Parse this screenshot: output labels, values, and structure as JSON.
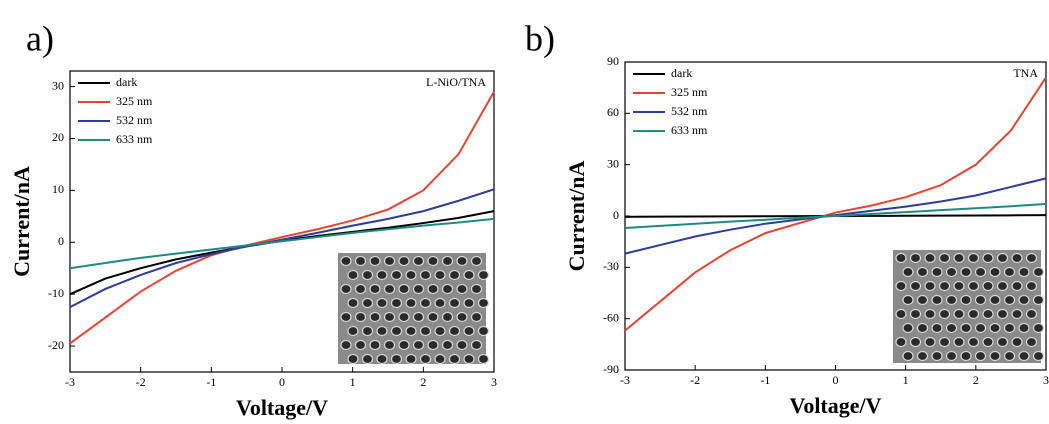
{
  "chart_data": [
    {
      "type": "line",
      "panel_label": "a)",
      "annotation": "L-NiO/TNA",
      "xlabel": "Voltage/V",
      "ylabel": "Current/nA",
      "x": [
        -3,
        -2.5,
        -2,
        -1.5,
        -1,
        -0.5,
        0,
        0.5,
        1,
        1.5,
        2,
        2.5,
        3
      ],
      "series": [
        {
          "name": "dark",
          "color": "#000000",
          "values": [
            -10,
            -7,
            -5,
            -3.3,
            -2,
            -0.8,
            0.3,
            1.2,
            2,
            2.8,
            3.7,
            4.7,
            6
          ]
        },
        {
          "name": "325 nm",
          "color": "#e8432e",
          "values": [
            -19.5,
            -14.5,
            -9.5,
            -5.5,
            -2.5,
            -0.6,
            1,
            2.5,
            4.2,
            6.3,
            10,
            17,
            29
          ]
        },
        {
          "name": "532 nm",
          "color": "#2c3d9c",
          "values": [
            -12.5,
            -9,
            -6.3,
            -4,
            -2.3,
            -0.8,
            0.5,
            1.8,
            3.2,
            4.5,
            6,
            8,
            10.2
          ]
        },
        {
          "name": "633 nm",
          "color": "#1f8a80",
          "values": [
            -5,
            -4,
            -3,
            -2.2,
            -1.4,
            -0.6,
            0.2,
            1,
            1.8,
            2.5,
            3.2,
            3.8,
            4.5
          ]
        }
      ],
      "xlim": [
        -3,
        3
      ],
      "ylim": [
        -25,
        33
      ],
      "xticks": [
        -3,
        -2,
        -1,
        0,
        1,
        2,
        3
      ],
      "yticks": [
        -20,
        -10,
        0,
        10,
        20,
        30
      ],
      "legend": "upper left"
    },
    {
      "type": "line",
      "panel_label": "b)",
      "annotation": "TNA",
      "xlabel": "Voltage/V",
      "ylabel": "Current/nA",
      "x": [
        -3,
        -2.5,
        -2,
        -1.5,
        -1,
        -0.5,
        0,
        0.5,
        1,
        1.5,
        2,
        2.5,
        3
      ],
      "series": [
        {
          "name": "dark",
          "color": "#000000",
          "values": [
            -0.5,
            -0.4,
            -0.3,
            -0.25,
            -0.15,
            -0.05,
            0,
            0.05,
            0.15,
            0.25,
            0.3,
            0.4,
            0.5
          ]
        },
        {
          "name": "325 nm",
          "color": "#e8432e",
          "values": [
            -67,
            -50,
            -33,
            -20,
            -10,
            -4,
            2,
            6,
            11,
            18,
            30,
            50,
            81
          ]
        },
        {
          "name": "532 nm",
          "color": "#2c3d9c",
          "values": [
            -22,
            -17,
            -12,
            -8,
            -4.5,
            -2,
            0.5,
            3,
            5.5,
            8.5,
            12,
            17,
            22
          ]
        },
        {
          "name": "633 nm",
          "color": "#1f8a80",
          "values": [
            -7,
            -5.8,
            -4.5,
            -3.3,
            -2.2,
            -1,
            0,
            1.2,
            2.3,
            3.4,
            4.5,
            5.7,
            7
          ]
        }
      ],
      "xlim": [
        -3,
        3
      ],
      "ylim": [
        -90,
        90
      ],
      "xticks": [
        -3,
        -2,
        -1,
        0,
        1,
        2,
        3
      ],
      "yticks": [
        -90,
        -60,
        -30,
        0,
        30,
        60,
        90
      ],
      "legend": "upper left"
    }
  ]
}
